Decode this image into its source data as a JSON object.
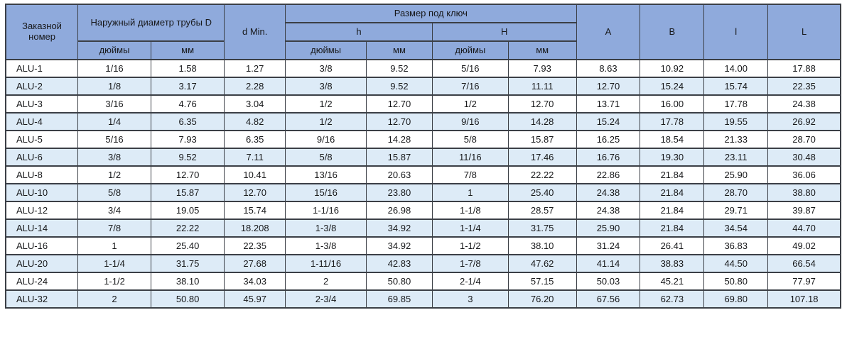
{
  "table": {
    "title_semantic": "ALU fitting dimensions table",
    "header": {
      "order_number": "Заказной номер",
      "outer_diameter": "Наружный диаметр трубы D",
      "d_min": "d Min.",
      "wrench_size": "Размер под ключ",
      "h_small": "h",
      "h_big": "H",
      "inches": "дюймы",
      "mm": "мм",
      "col_a": "A",
      "col_b": "B",
      "col_l_small": "l",
      "col_l_big": "L"
    },
    "columns_semantic": [
      "order_number",
      "D_inches",
      "D_mm",
      "d_min",
      "h_inches",
      "h_mm",
      "H_inches",
      "H_mm",
      "A",
      "B",
      "l",
      "L"
    ],
    "rows": [
      [
        "ALU-1",
        "1/16",
        "1.58",
        "1.27",
        "3/8",
        "9.52",
        "5/16",
        "7.93",
        "8.63",
        "10.92",
        "14.00",
        "17.88"
      ],
      [
        "ALU-2",
        "1/8",
        "3.17",
        "2.28",
        "3/8",
        "9.52",
        "7/16",
        "11.11",
        "12.70",
        "15.24",
        "15.74",
        "22.35"
      ],
      [
        "ALU-3",
        "3/16",
        "4.76",
        "3.04",
        "1/2",
        "12.70",
        "1/2",
        "12.70",
        "13.71",
        "16.00",
        "17.78",
        "24.38"
      ],
      [
        "ALU-4",
        "1/4",
        "6.35",
        "4.82",
        "1/2",
        "12.70",
        "9/16",
        "14.28",
        "15.24",
        "17.78",
        "19.55",
        "26.92"
      ],
      [
        "ALU-5",
        "5/16",
        "7.93",
        "6.35",
        "9/16",
        "14.28",
        "5/8",
        "15.87",
        "16.25",
        "18.54",
        "21.33",
        "28.70"
      ],
      [
        "ALU-6",
        "3/8",
        "9.52",
        "7.11",
        "5/8",
        "15.87",
        "11/16",
        "17.46",
        "16.76",
        "19.30",
        "23.11",
        "30.48"
      ],
      [
        "ALU-8",
        "1/2",
        "12.70",
        "10.41",
        "13/16",
        "20.63",
        "7/8",
        "22.22",
        "22.86",
        "21.84",
        "25.90",
        "36.06"
      ],
      [
        "ALU-10",
        "5/8",
        "15.87",
        "12.70",
        "15/16",
        "23.80",
        "1",
        "25.40",
        "24.38",
        "21.84",
        "28.70",
        "38.80"
      ],
      [
        "ALU-12",
        "3/4",
        "19.05",
        "15.74",
        "1-1/16",
        "26.98",
        "1-1/8",
        "28.57",
        "24.38",
        "21.84",
        "29.71",
        "39.87"
      ],
      [
        "ALU-14",
        "7/8",
        "22.22",
        "18.208",
        "1-3/8",
        "34.92",
        "1-1/4",
        "31.75",
        "25.90",
        "21.84",
        "34.54",
        "44.70"
      ],
      [
        "ALU-16",
        "1",
        "25.40",
        "22.35",
        "1-3/8",
        "34.92",
        "1-1/2",
        "38.10",
        "31.24",
        "26.41",
        "36.83",
        "49.02"
      ],
      [
        "ALU-20",
        "1-1/4",
        "31.75",
        "27.68",
        "1-11/16",
        "42.83",
        "1-7/8",
        "47.62",
        "41.14",
        "38.83",
        "44.50",
        "66.54"
      ],
      [
        "ALU-24",
        "1-1/2",
        "38.10",
        "34.03",
        "2",
        "50.80",
        "2-1/4",
        "57.15",
        "50.03",
        "45.21",
        "50.80",
        "77.97"
      ],
      [
        "ALU-32",
        "2",
        "50.80",
        "45.97",
        "2-3/4",
        "69.85",
        "3",
        "76.20",
        "67.56",
        "62.73",
        "69.80",
        "107.18"
      ]
    ]
  },
  "colors": {
    "header_bg": "#8faadc",
    "row_alt_bg": "#ddebf7",
    "row_bg": "#ffffff",
    "border": "#3b3f46",
    "text": "#17181a"
  }
}
